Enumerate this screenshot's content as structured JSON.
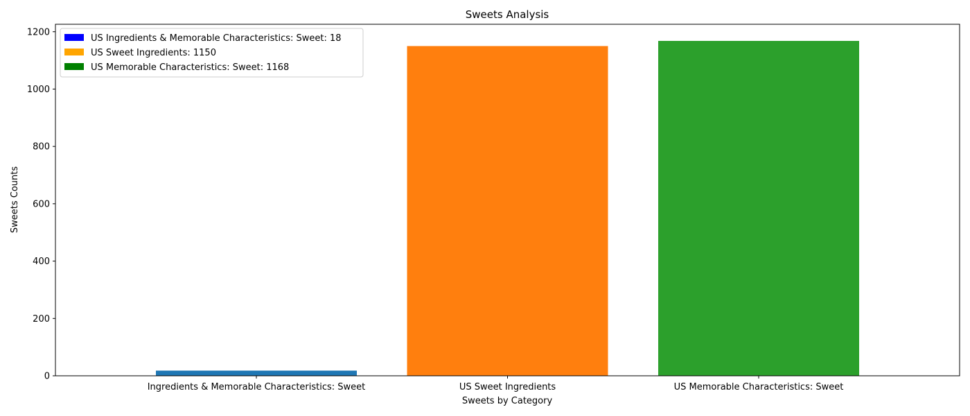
{
  "chart_data": {
    "type": "bar",
    "title": "Sweets Analysis",
    "xlabel": "Sweets by Category",
    "ylabel": "Sweets Counts",
    "categories": [
      "Ingredients & Memorable Characteristics: Sweet",
      "US Sweet Ingredients",
      "US Memorable Characteristics: Sweet"
    ],
    "values": [
      18,
      1150,
      1168
    ],
    "bar_colors": [
      "#1f77b4",
      "#ff7f0e",
      "#2ca02c"
    ],
    "ylim": [
      0,
      1226
    ],
    "yticks": [
      0,
      200,
      400,
      600,
      800,
      1000,
      1200
    ],
    "grid": false,
    "legend": {
      "placement": "top-left",
      "entries": [
        {
          "label": "US Ingredients & Memorable Characteristics: Sweet: 18",
          "color": "#0000ff"
        },
        {
          "label": "US Sweet Ingredients: 1150",
          "color": "#ffa500"
        },
        {
          "label": "US Memorable Characteristics: Sweet: 1168",
          "color": "#008000"
        }
      ]
    }
  }
}
